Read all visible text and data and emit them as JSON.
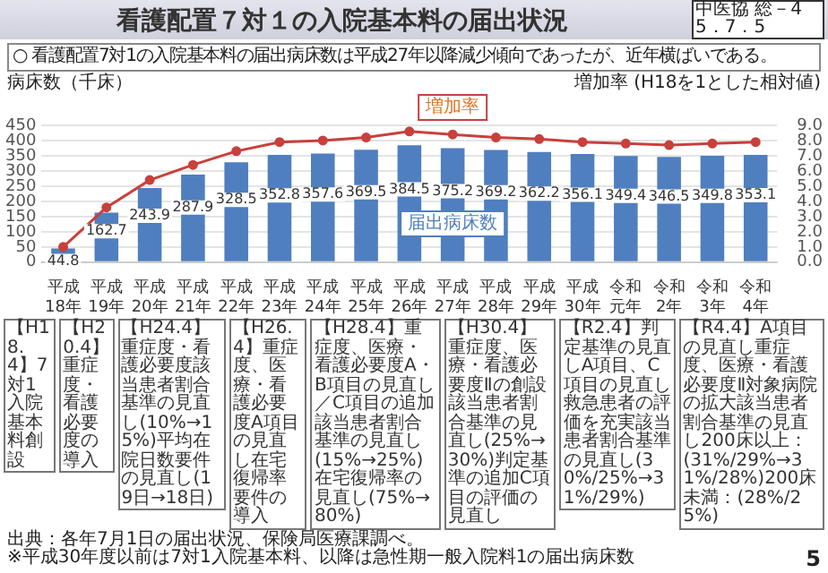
{
  "chart_data": {
    "type": "bar",
    "title": "看護配置７対１の入院基本料の届出状況",
    "subtitle": "○ 看護配置7対1の入院基本料の届出病床数は平成27年以降減少傾向であったが、近年横ばいである。",
    "ylabel": "病床数（千床）",
    "y2label": "増加率 (H18を1とした相対値)",
    "categories": [
      "平成18年",
      "平成19年",
      "平成20年",
      "平成21年",
      "平成22年",
      "平成23年",
      "平成24年",
      "平成25年",
      "平成26年",
      "平成27年",
      "平成28年",
      "平成29年",
      "平成30年",
      "令和元年",
      "令和2年",
      "令和3年",
      "令和4年"
    ],
    "series": [
      {
        "name": "届出病床数",
        "color": "#4f7fbf",
        "values": [
          44.8,
          162.7,
          243.9,
          287.9,
          328.5,
          352.8,
          357.6,
          369.5,
          384.5,
          375.2,
          369.2,
          362.2,
          356.1,
          349.4,
          346.5,
          349.8,
          353.1
        ],
        "value_labels": [
          "44.8",
          "162.7",
          "243.9",
          "287.9",
          "328.5",
          "352.8",
          "357.6",
          "369.5",
          "384.5",
          "375.2",
          "369.2",
          "362.2",
          "356.1",
          "349.4",
          "346.5",
          "349.8",
          "353.1"
        ]
      },
      {
        "name": "増加率",
        "type": "line",
        "axis": "y2",
        "color": "#c8403c",
        "values": [
          1.0,
          3.6,
          5.4,
          6.4,
          7.3,
          7.9,
          8.0,
          8.2,
          8.6,
          8.4,
          8.2,
          8.1,
          7.9,
          7.8,
          7.7,
          7.8,
          7.9
        ]
      }
    ],
    "ylim": [
      0,
      450
    ],
    "yticks": [
      0,
      50,
      100,
      150,
      200,
      250,
      300,
      350,
      400,
      450
    ],
    "y2lim": [
      0,
      9
    ],
    "y2ticks": [
      {
        "value": 0,
        "label": "0.0"
      },
      {
        "value": 1,
        "label": "1.0"
      },
      {
        "value": 2,
        "label": "2.0"
      },
      {
        "value": 3,
        "label": "3.0"
      },
      {
        "value": 4,
        "label": "4.0"
      },
      {
        "value": 5,
        "label": "5.0"
      },
      {
        "value": 6,
        "label": "6.0"
      },
      {
        "value": 7,
        "label": "7.0"
      },
      {
        "value": 8,
        "label": "8.0"
      },
      {
        "value": 9,
        "label": "9.0"
      }
    ],
    "grid": "y",
    "legend": false,
    "marker": "circle",
    "line_style": "solid",
    "annotations": [
      "中医協 総－4 5．7．5",
      "【H18.4】7対1入院基本料創設",
      "【H20.4】重症度・看護必要度の導入",
      "【H24.4】重症度・看護必要度該当患者割合基準の見直し(10%→15%)平均在院日数要件の見直し(19日→18日)",
      "【H26.4】重症度、医療・看護必要度A項目の見直し在宅復帰率要件の導入",
      "【H28.4】重症度、医療・看護必要度A・B項目の見直し／C項目の追加該当患者割合基準の見直し(15%→25%)在宅復帰率の見直し(75%→80%)",
      "【H30.4】重症度、医療・看護必要度Ⅱの創設該当患者割合基準の見直し(25%→30%)判定基準の追加C項目の評価の見直し",
      "【R2.4】判定基準の見直しA項目、C項目の見直し救急患者の評価を充実該当患者割合基準の見直し(30%/25%→31%/29%)",
      "【R4.4】A項目の見直し重症度、医療・看護必要度Ⅱ対象病院の拡大該当患者割合基準の見直し200床以上：(31%/29%→31%/28%)200床未満：(28%/25%)",
      "出典：各年7月1日の届出状況、保険局医療課調べ。",
      "※平成30年度以前は7対1入院基本料、以降は急性期一般入院料1の届出病床数",
      "5"
    ]
  }
}
